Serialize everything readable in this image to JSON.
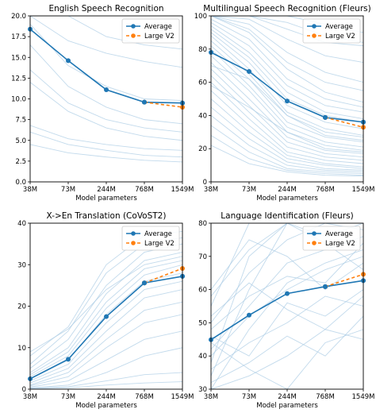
{
  "chart_data": [
    {
      "type": "line",
      "title": "English Speech Recognition",
      "xlabel": "Model parameters",
      "ylabel": "",
      "categories": [
        "38M",
        "73M",
        "244M",
        "768M",
        "1549M"
      ],
      "ylim": [
        0.0,
        20.0
      ],
      "yticks": [
        "0.0",
        "2.5",
        "5.0",
        "7.5",
        "10.0",
        "12.5",
        "15.0",
        "17.5",
        "20.0"
      ],
      "ytick_values": [
        0,
        2.5,
        5,
        7.5,
        10,
        12.5,
        15,
        17.5,
        20
      ],
      "legend": "top-right",
      "series": [
        {
          "name": "Average",
          "values": [
            18.4,
            14.6,
            11.1,
            9.6,
            9.5
          ],
          "color": "#1f77b4"
        },
        {
          "name": "Large V2",
          "values": [
            null,
            null,
            null,
            9.6,
            9.0
          ],
          "color": "#ff7f0e"
        }
      ],
      "background_lines": [
        [
          20.0,
          17.0,
          15.5,
          14.5,
          13.8
        ],
        [
          19.0,
          14.0,
          11.5,
          10.0,
          9.8
        ],
        [
          16.5,
          11.5,
          9.0,
          7.5,
          7.0
        ],
        [
          13.5,
          9.5,
          7.5,
          6.5,
          6.0
        ],
        [
          12.0,
          8.5,
          6.5,
          5.5,
          5.0
        ],
        [
          6.8,
          5.2,
          4.5,
          4.0,
          3.8
        ],
        [
          6.0,
          4.5,
          3.8,
          3.2,
          3.0
        ],
        [
          4.5,
          3.5,
          3.0,
          2.6,
          2.4
        ],
        [
          20.0,
          20.0,
          17.5,
          16.5,
          16.0
        ]
      ]
    },
    {
      "type": "line",
      "title": "Multilingual Speech Recognition (Fleurs)",
      "xlabel": "Model parameters",
      "ylabel": "",
      "categories": [
        "38M",
        "73M",
        "244M",
        "768M",
        "1549M"
      ],
      "ylim": [
        0,
        100
      ],
      "yticks": [
        "0",
        "20",
        "40",
        "60",
        "80",
        "100"
      ],
      "ytick_values": [
        0,
        20,
        40,
        60,
        80,
        100
      ],
      "legend": "top-right",
      "series": [
        {
          "name": "Average",
          "values": [
            78.0,
            66.5,
            48.7,
            38.8,
            36.0
          ],
          "color": "#1f77b4"
        },
        {
          "name": "Large V2",
          "values": [
            null,
            null,
            null,
            38.8,
            32.9
          ],
          "color": "#ff7f0e"
        }
      ],
      "background_lines": [
        [
          100,
          100,
          96,
          88,
          84
        ],
        [
          100,
          98,
          86,
          76,
          72
        ],
        [
          100,
          95,
          78,
          66,
          60
        ],
        [
          100,
          92,
          72,
          60,
          55
        ],
        [
          100,
          90,
          68,
          54,
          48
        ],
        [
          98,
          86,
          62,
          50,
          45
        ],
        [
          96,
          82,
          58,
          46,
          42
        ],
        [
          94,
          78,
          54,
          42,
          38
        ],
        [
          92,
          75,
          50,
          40,
          36
        ],
        [
          90,
          72,
          46,
          36,
          32
        ],
        [
          88,
          68,
          42,
          32,
          28
        ],
        [
          85,
          65,
          40,
          30,
          27
        ],
        [
          82,
          62,
          36,
          27,
          24
        ],
        [
          80,
          58,
          33,
          24,
          21
        ],
        [
          76,
          55,
          30,
          22,
          19
        ],
        [
          72,
          50,
          27,
          19,
          17
        ],
        [
          68,
          46,
          24,
          17,
          15
        ],
        [
          64,
          42,
          21,
          15,
          13
        ],
        [
          60,
          38,
          18,
          13,
          11
        ],
        [
          55,
          34,
          16,
          11,
          9
        ],
        [
          50,
          30,
          14,
          10,
          8
        ],
        [
          45,
          26,
          12,
          8,
          7
        ],
        [
          40,
          22,
          10,
          7,
          6
        ],
        [
          34,
          18,
          8,
          6,
          5
        ],
        [
          28,
          14,
          7,
          5,
          4
        ],
        [
          22,
          11,
          6,
          4,
          3.5
        ],
        [
          100,
          100,
          100,
          95,
          90
        ],
        [
          100,
          100,
          92,
          84,
          82
        ],
        [
          70,
          62,
          40,
          28,
          25
        ],
        [
          58,
          45,
          30,
          20,
          18
        ]
      ]
    },
    {
      "type": "line",
      "title": "X->En Translation (CoVoST2)",
      "xlabel": "Model parameters",
      "ylabel": "",
      "categories": [
        "38M",
        "73M",
        "244M",
        "768M",
        "1549M"
      ],
      "ylim": [
        0,
        40
      ],
      "yticks": [
        "0",
        "10",
        "20",
        "30",
        "40"
      ],
      "ytick_values": [
        0,
        10,
        20,
        30,
        40
      ],
      "legend": "top-right",
      "series": [
        {
          "name": "Average",
          "values": [
            2.5,
            7.2,
            17.5,
            25.6,
            27.2
          ],
          "color": "#1f77b4"
        },
        {
          "name": "Large V2",
          "values": [
            null,
            null,
            null,
            25.6,
            29.1
          ],
          "color": "#ff7f0e"
        }
      ],
      "background_lines": [
        [
          6.0,
          14.0,
          28.0,
          35.0,
          36.5
        ],
        [
          5.0,
          12.0,
          25.0,
          33.0,
          35.0
        ],
        [
          4.0,
          10.0,
          23.0,
          31.0,
          33.0
        ],
        [
          3.5,
          9.0,
          21.0,
          29.0,
          31.0
        ],
        [
          3.0,
          8.0,
          19.5,
          27.5,
          30.0
        ],
        [
          2.5,
          7.0,
          18.0,
          26.0,
          28.0
        ],
        [
          2.0,
          6.0,
          16.0,
          24.0,
          26.0
        ],
        [
          1.5,
          5.0,
          14.0,
          22.0,
          24.0
        ],
        [
          1.0,
          4.0,
          12.0,
          19.0,
          21.0
        ],
        [
          0.8,
          3.0,
          10.0,
          16.0,
          18.0
        ],
        [
          0.5,
          2.0,
          7.0,
          12.0,
          14.0
        ],
        [
          0.3,
          1.0,
          4.0,
          8.0,
          10.0
        ],
        [
          0.2,
          0.6,
          2.0,
          3.5,
          4.0
        ],
        [
          0.1,
          0.3,
          1.0,
          1.5,
          1.8
        ],
        [
          8.0,
          15.0,
          30.0,
          37.0,
          38.0
        ],
        [
          9.0,
          14.5,
          24.0,
          30.0,
          32.0
        ]
      ]
    },
    {
      "type": "line",
      "title": "Language Identification (Fleurs)",
      "xlabel": "Model parameters",
      "ylabel": "",
      "categories": [
        "38M",
        "73M",
        "244M",
        "768M",
        "1549M"
      ],
      "ylim": [
        30,
        80
      ],
      "yticks": [
        "30",
        "40",
        "50",
        "60",
        "70",
        "80"
      ],
      "ytick_values": [
        30,
        40,
        50,
        60,
        70,
        80
      ],
      "legend": "top-right",
      "series": [
        {
          "name": "Average",
          "values": [
            44.9,
            52.3,
            58.8,
            60.9,
            62.7
          ],
          "color": "#1f77b4"
        },
        {
          "name": "Large V2",
          "values": [
            null,
            null,
            null,
            60.9,
            64.6
          ],
          "color": "#ff7f0e"
        }
      ],
      "background_lines": [
        [
          30,
          48,
          62,
          68,
          72
        ],
        [
          34,
          60,
          80,
          80,
          80
        ],
        [
          38,
          70,
          80,
          76,
          80
        ],
        [
          42,
          55,
          68,
          72,
          76
        ],
        [
          46,
          40,
          56,
          52,
          60
        ],
        [
          50,
          65,
          75,
          80,
          78
        ],
        [
          55,
          80,
          80,
          80,
          80
        ],
        [
          60,
          75,
          70,
          60,
          68
        ],
        [
          36,
          44,
          50,
          58,
          55
        ],
        [
          32,
          38,
          46,
          40,
          52
        ],
        [
          40,
          52,
          60,
          66,
          70
        ],
        [
          48,
          58,
          64,
          62,
          74
        ],
        [
          44,
          36,
          30,
          44,
          48
        ],
        [
          52,
          62,
          54,
          48,
          58
        ],
        [
          30,
          34,
          40,
          48,
          45
        ],
        [
          58,
          72,
          80,
          74,
          66
        ]
      ]
    }
  ]
}
